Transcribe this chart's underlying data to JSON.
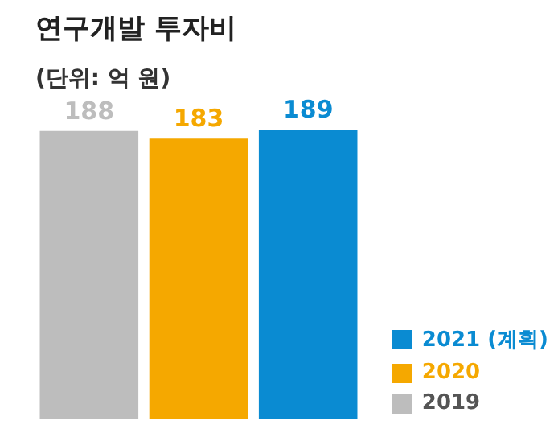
{
  "chart_data": {
    "type": "bar",
    "title": "연구개발 투자비",
    "subtitle": "(단위: 억 원)",
    "categories": [
      null
    ],
    "series": [
      {
        "name": "2019",
        "color": "#bdbdbd",
        "values": [
          188
        ]
      },
      {
        "name": "2020",
        "color": "#f5a800",
        "values": [
          183
        ]
      },
      {
        "name": "2021 (계획)",
        "color": "#0a8bd2",
        "values": [
          189
        ]
      }
    ],
    "data_labels": true,
    "legend": "bottom right"
  }
}
